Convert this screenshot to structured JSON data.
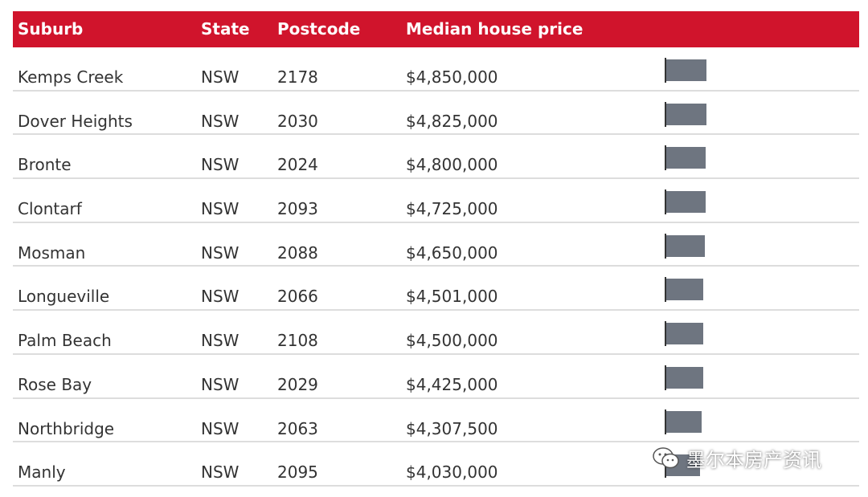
{
  "colors": {
    "accent": "#d0142c",
    "bar": "#6e7580"
  },
  "chart_data": {
    "type": "table",
    "columns": [
      "Suburb",
      "State",
      "Postcode",
      "Median house price"
    ],
    "rows": [
      {
        "suburb": "Kemps Creek",
        "state": "NSW",
        "postcode": "2178",
        "price_label": "$4,850,000",
        "price": 4850000
      },
      {
        "suburb": "Dover Heights",
        "state": "NSW",
        "postcode": "2030",
        "price_label": "$4,825,000",
        "price": 4825000
      },
      {
        "suburb": "Bronte",
        "state": "NSW",
        "postcode": "2024",
        "price_label": "$4,800,000",
        "price": 4800000
      },
      {
        "suburb": "Clontarf",
        "state": "NSW",
        "postcode": "2093",
        "price_label": "$4,725,000",
        "price": 4725000
      },
      {
        "suburb": "Mosman",
        "state": "NSW",
        "postcode": "2088",
        "price_label": "$4,650,000",
        "price": 4650000
      },
      {
        "suburb": "Longueville",
        "state": "NSW",
        "postcode": "2066",
        "price_label": "$4,501,000",
        "price": 4501000
      },
      {
        "suburb": "Palm Beach",
        "state": "NSW",
        "postcode": "2108",
        "price_label": "$4,500,000",
        "price": 4500000
      },
      {
        "suburb": "Rose Bay",
        "state": "NSW",
        "postcode": "2029",
        "price_label": "$4,425,000",
        "price": 4425000
      },
      {
        "suburb": "Northbridge",
        "state": "NSW",
        "postcode": "2063",
        "price_label": "$4,307,500",
        "price": 4307500
      },
      {
        "suburb": "Manly",
        "state": "NSW",
        "postcode": "2095",
        "price_label": "$4,030,000",
        "price": 4030000
      }
    ]
  },
  "watermark": {
    "text": "墨尔本房产资讯",
    "icon": "wechat-icon"
  }
}
